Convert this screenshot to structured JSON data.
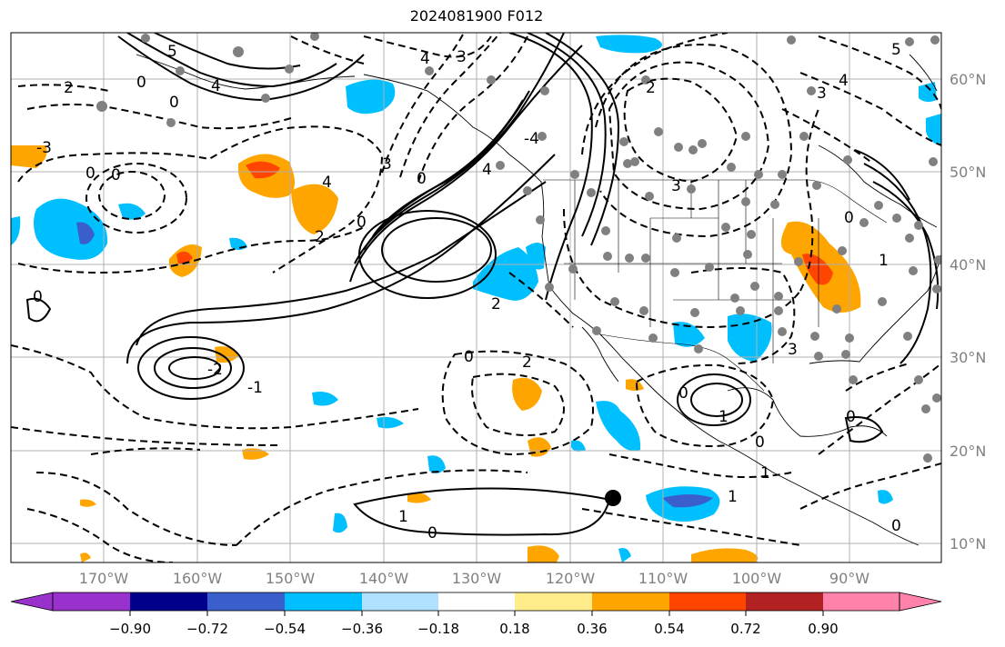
{
  "title": "2024081900 F012",
  "map": {
    "lon_labels": [
      "170°W",
      "160°W",
      "150°W",
      "140°W",
      "130°W",
      "120°W",
      "110°W",
      "100°W",
      "90°W"
    ],
    "lat_labels": [
      "60°N",
      "50°N",
      "40°N",
      "30°N",
      "20°N",
      "10°N"
    ],
    "grid": true,
    "contour_labels": [
      "0",
      "-2",
      "1",
      "-1",
      "2",
      "-4",
      "3",
      "-3",
      "4",
      "-5",
      "5"
    ],
    "marker": "black-dot-at-15N-115W",
    "station_symbol": "gray-dot"
  },
  "colorbar": {
    "ticks": [
      "−0.90",
      "−0.72",
      "−0.54",
      "−0.36",
      "−0.18",
      "0.18",
      "0.36",
      "0.54",
      "0.72",
      "0.90"
    ],
    "colors": [
      "#9932cc",
      "#00008b",
      "#3a5fcd",
      "#00bfff",
      "#b0e2ff",
      "#ffffff",
      "#ffec8b",
      "#ffa500",
      "#ff4500",
      "#b22222",
      "#ff82ab"
    ],
    "extend": "both"
  }
}
